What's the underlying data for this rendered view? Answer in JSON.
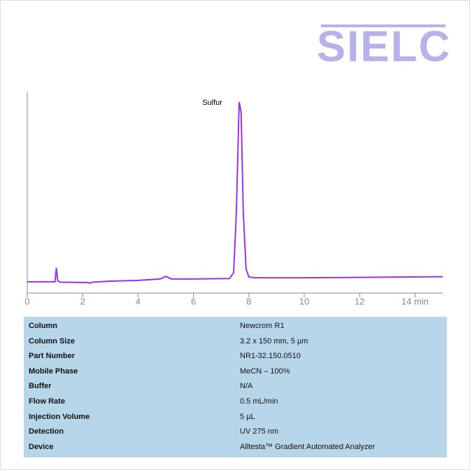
{
  "logo": "SIELC",
  "chart_data": {
    "type": "line",
    "annotations": [
      {
        "text": "Sulfur",
        "x": 7.65,
        "y": 94.8
      }
    ],
    "x": [
      0,
      1.0,
      1.05,
      1.1,
      1.2,
      2.2,
      2.25,
      2.35,
      3,
      4,
      4.8,
      5.0,
      5.2,
      6,
      7.3,
      7.45,
      7.55,
      7.65,
      7.72,
      7.8,
      7.9,
      8.0,
      8.2,
      10,
      15
    ],
    "series": [
      {
        "color": "#9b30f0",
        "values": [
          5.6,
          5.6,
          12.5,
          6.0,
          5.4,
          5.2,
          4.9,
          5.4,
          5.9,
          6.3,
          7.0,
          8.3,
          7.0,
          7.0,
          7.2,
          10,
          40,
          94.8,
          90,
          40,
          12,
          8.0,
          7.6,
          7.6,
          8.1
        ]
      }
    ],
    "xlim": [
      0,
      15
    ],
    "ylim": [
      0,
      100
    ],
    "xticks": [
      0,
      2,
      4,
      6,
      8,
      10,
      12,
      {
        "value": 14,
        "label": "14 min"
      }
    ]
  },
  "table": {
    "rows": [
      [
        "Column",
        "Newcrom R1"
      ],
      [
        "Column Size",
        "3.2 x 150 mm, 5 µm"
      ],
      [
        "Part Number",
        "NR1-32.150.0510"
      ],
      [
        "Mobile Phase",
        "MeCN – 100%"
      ],
      [
        "Buffer",
        "N/A"
      ],
      [
        "Flow Rate",
        "0.5 mL/min"
      ],
      [
        "Injection Volume",
        "5 µL"
      ],
      [
        "Detection",
        "UV 275 nm"
      ],
      [
        "Device",
        "Alltesta™ Gradient Automated Analyzer"
      ]
    ]
  }
}
